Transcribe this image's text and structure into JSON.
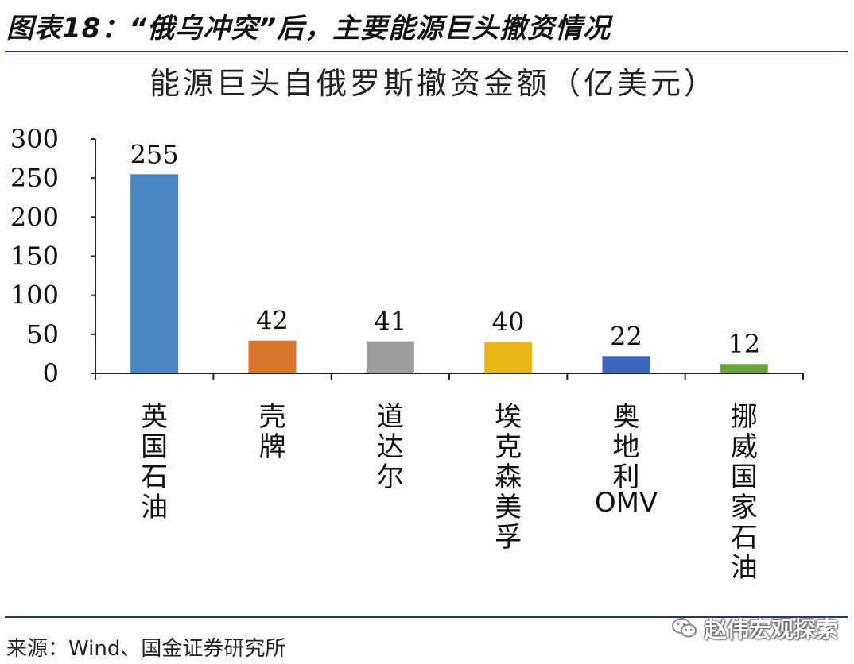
{
  "figure": {
    "title": "图表18：“俄乌冲突”后，主要能源巨头撤资情况",
    "source": "来源：Wind、国金证券研究所",
    "watermark": "赵伟宏观探索",
    "watermark_icon": "wechat-icon"
  },
  "chart_data": {
    "type": "bar",
    "title": "能源巨头自俄罗斯撤资金额（亿美元）",
    "categories": [
      "英国石油",
      "壳牌",
      "道达尔",
      "埃克森美孚",
      "奥地利OMV",
      "挪威国家石油"
    ],
    "values": [
      255,
      42,
      41,
      40,
      22,
      12
    ],
    "data_labels": [
      "255",
      "42",
      "41",
      "40",
      "22",
      "12"
    ],
    "colors": [
      "#4a86c2",
      "#d9742a",
      "#9e9e9e",
      "#e9b517",
      "#3a66bf",
      "#6aa344"
    ],
    "y_ticks": [
      "0",
      "50",
      "100",
      "150",
      "200",
      "250",
      "300"
    ],
    "ylim": [
      0,
      300
    ],
    "xlabel": "",
    "ylabel": "",
    "grid": false,
    "legend": "none"
  }
}
